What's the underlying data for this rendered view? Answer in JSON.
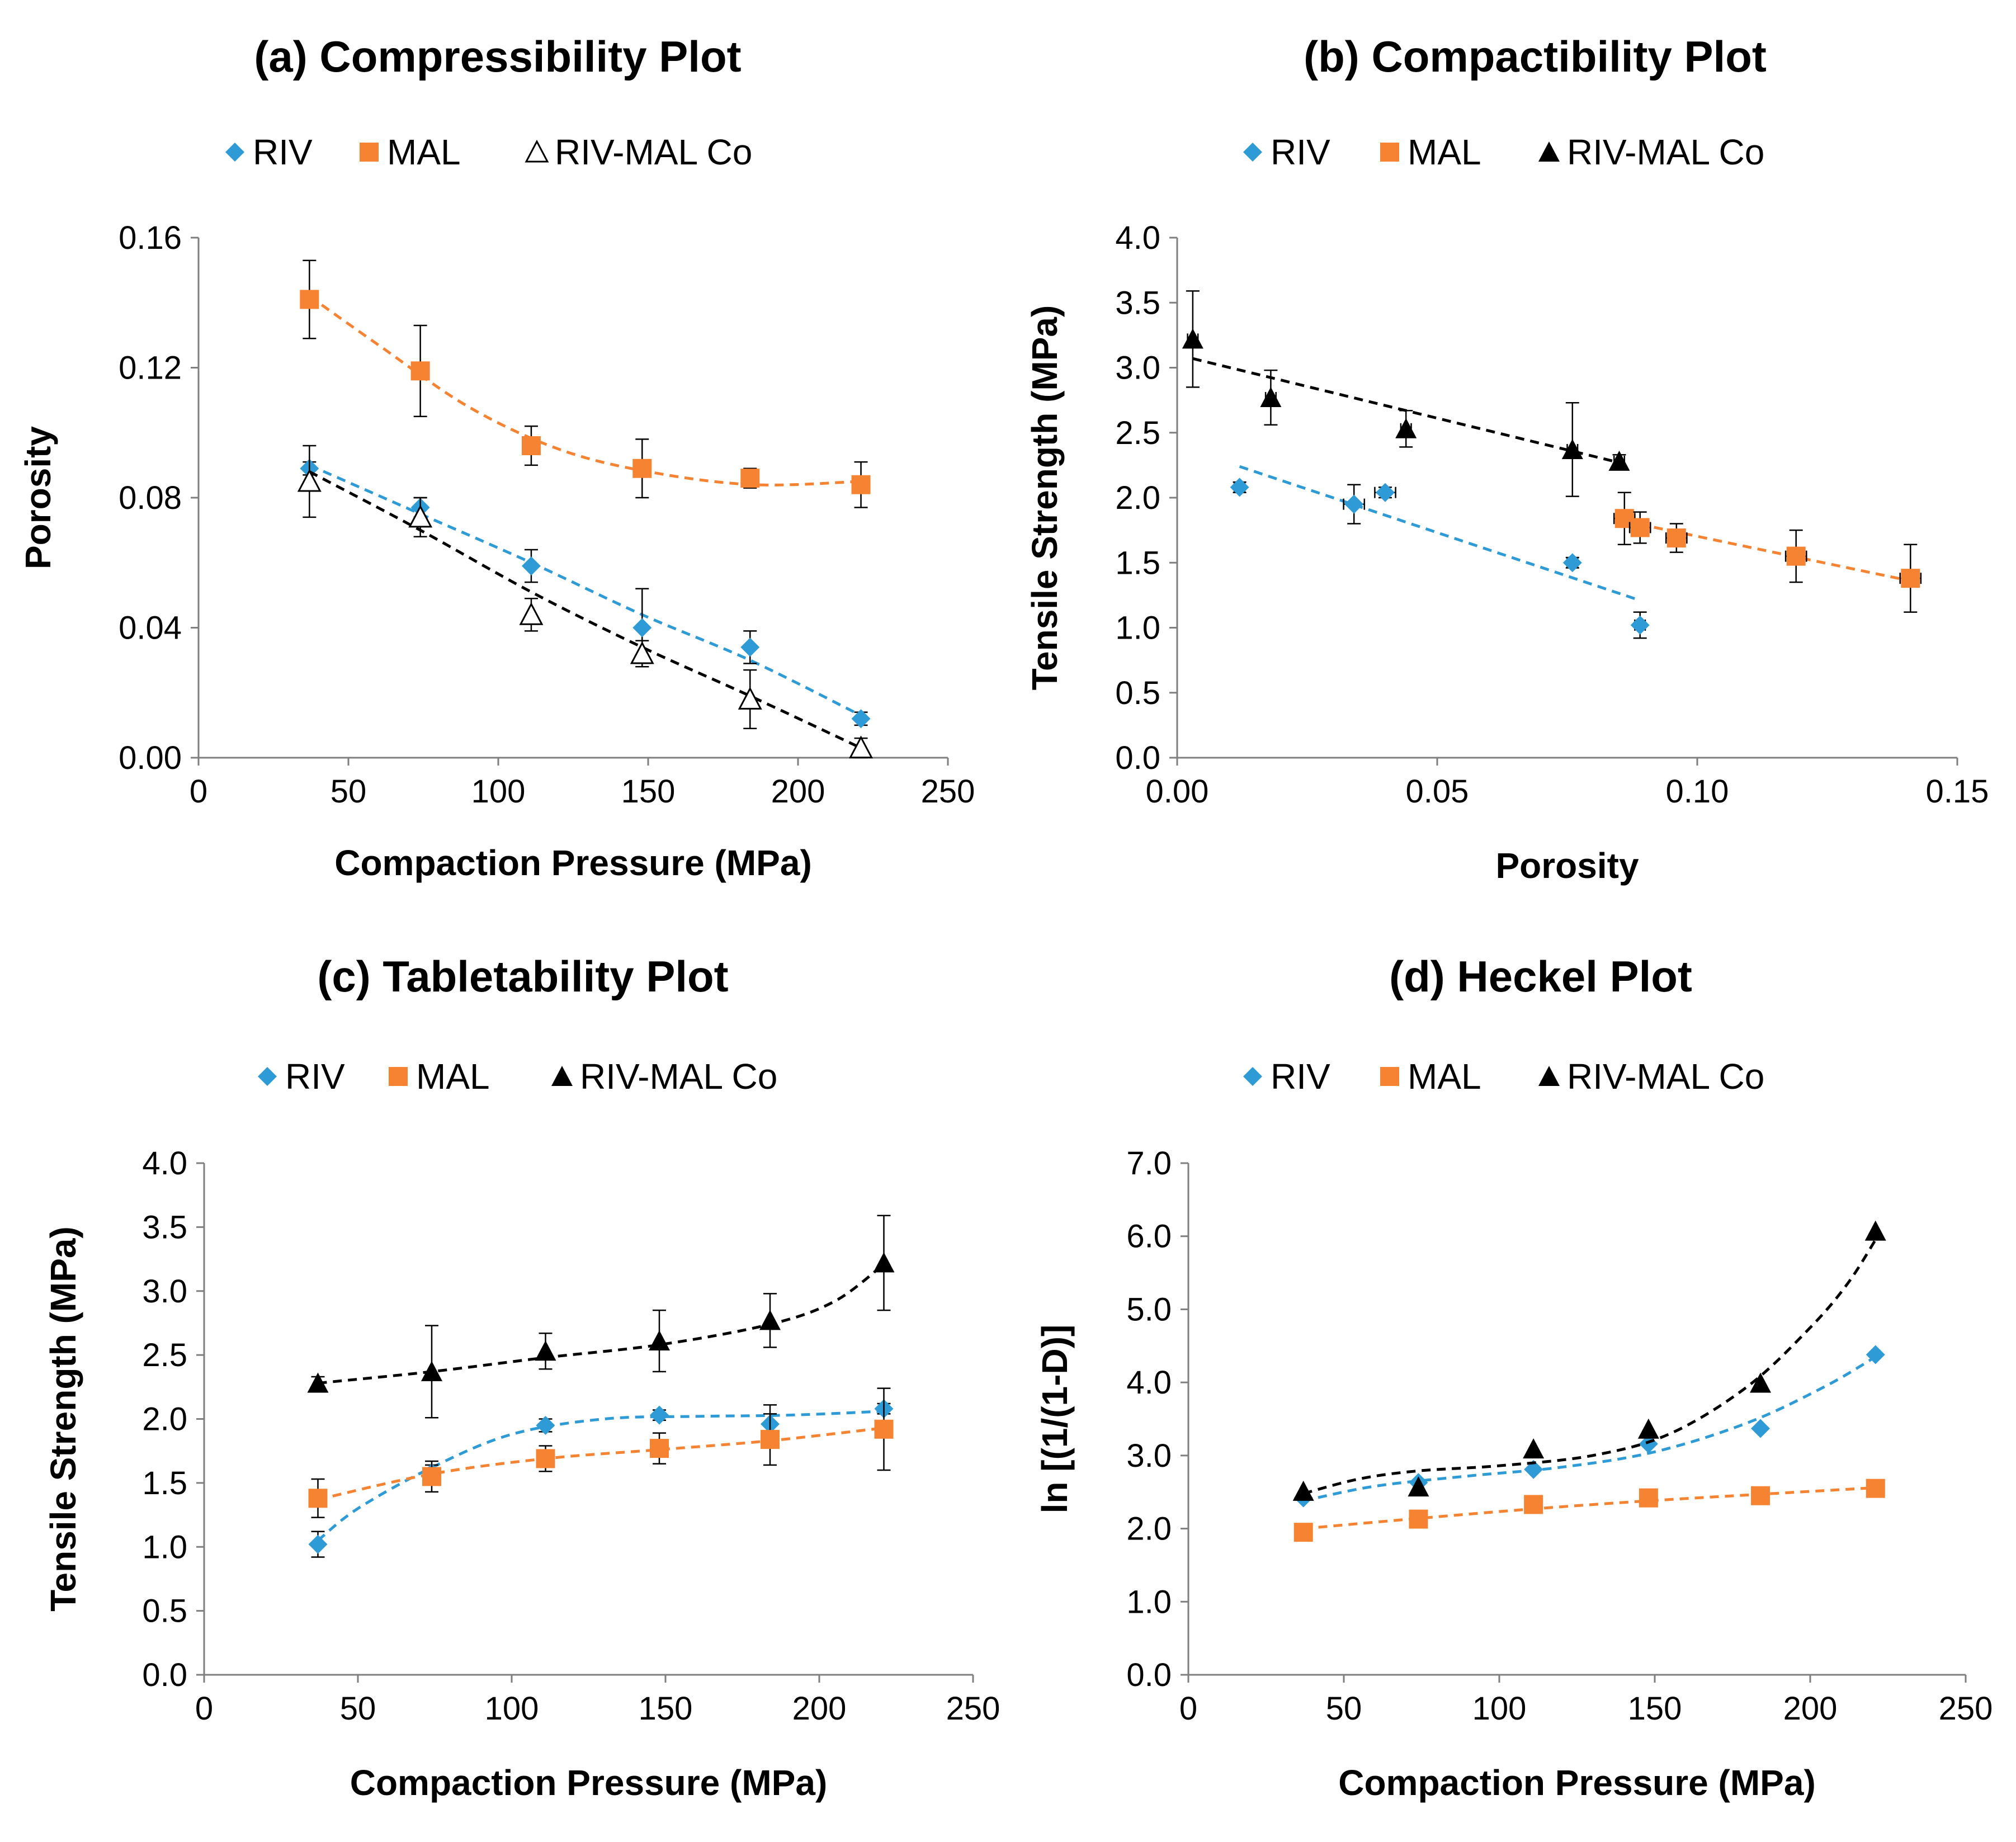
{
  "colors": {
    "riv": "#2e9bd6",
    "mal": "#f58332",
    "co": "#000000"
  },
  "chart_data": [
    {
      "panel": "a",
      "type": "scatter",
      "title": "(a) Compressibility Plot",
      "xlabel": "Compaction  Pressure (MPa)",
      "ylabel": "Porosity",
      "xlim": [
        0,
        250
      ],
      "ylim": [
        0,
        0.16
      ],
      "x_ticks": [
        0,
        50,
        100,
        150,
        200,
        250
      ],
      "x_tick_labels": [
        "0",
        "50",
        "100",
        "150",
        "200",
        "250"
      ],
      "y_ticks": [
        0,
        0.04,
        0.08,
        0.12,
        0.16
      ],
      "y_tick_labels": [
        "0.00",
        "0.04",
        "0.08",
        "0.12",
        "0.16"
      ],
      "legend": [
        "RIV",
        "MAL",
        "RIV-MAL Co"
      ],
      "series": [
        {
          "name": "RIV",
          "marker": "diamond",
          "color": "#2e9bd6",
          "x": [
            37,
            74,
            111,
            148,
            184,
            221
          ],
          "y": [
            0.089,
            0.077,
            0.059,
            0.04,
            0.034,
            0.012
          ],
          "err": [
            0.002,
            0.003,
            0.005,
            0.012,
            0.005,
            0.002
          ],
          "trend": [
            [
              37,
              0.09
            ],
            [
              74,
              0.075
            ],
            [
              111,
              0.06
            ],
            [
              148,
              0.044
            ],
            [
              184,
              0.03
            ],
            [
              221,
              0.013
            ]
          ]
        },
        {
          "name": "MAL",
          "marker": "square",
          "color": "#f58332",
          "x": [
            37,
            74,
            111,
            148,
            184,
            221
          ],
          "y": [
            0.141,
            0.119,
            0.096,
            0.089,
            0.086,
            0.084
          ],
          "err": [
            0.012,
            0.014,
            0.006,
            0.009,
            0.003,
            0.007
          ],
          "trend": [
            [
              37,
              0.142
            ],
            [
              60,
              0.127
            ],
            [
              90,
              0.108
            ],
            [
              120,
              0.095
            ],
            [
              150,
              0.088
            ],
            [
              185,
              0.084
            ],
            [
              221,
              0.085
            ]
          ]
        },
        {
          "name": "RIV-MAL Co",
          "marker": "triangle-open",
          "color": "#000000",
          "x": [
            37,
            74,
            111,
            148,
            184,
            221
          ],
          "y": [
            0.085,
            0.074,
            0.044,
            0.032,
            0.018,
            0.003
          ],
          "err": [
            0.011,
            0.006,
            0.005,
            0.004,
            0.009,
            0.003
          ],
          "trend": [
            [
              37,
              0.088
            ],
            [
              74,
              0.07
            ],
            [
              111,
              0.051
            ],
            [
              148,
              0.034
            ],
            [
              184,
              0.019
            ],
            [
              221,
              0.003
            ]
          ]
        }
      ]
    },
    {
      "panel": "b",
      "type": "scatter",
      "title": "(b) Compactibility Plot",
      "xlabel": "Porosity",
      "ylabel": "Tensile Strength (MPa)",
      "xlim": [
        0,
        0.15
      ],
      "ylim": [
        0,
        4.0
      ],
      "x_ticks": [
        0,
        0.05,
        0.1,
        0.15
      ],
      "x_tick_labels": [
        "0.00",
        "0.05",
        "0.10",
        "0.15"
      ],
      "y_ticks": [
        0,
        0.5,
        1.0,
        1.5,
        2.0,
        2.5,
        3.0,
        3.5,
        4.0
      ],
      "y_tick_labels": [
        "0.0",
        "0.5",
        "1.0",
        "1.5",
        "2.0",
        "2.5",
        "3.0",
        "3.5",
        "4.0"
      ],
      "legend": [
        "RIV",
        "MAL",
        "RIV-MAL Co"
      ],
      "series": [
        {
          "name": "RIV",
          "marker": "diamond",
          "color": "#2e9bd6",
          "x": [
            0.012,
            0.034,
            0.04,
            0.076,
            0.089
          ],
          "y": [
            2.08,
            1.95,
            2.04,
            1.5,
            1.02
          ],
          "err": [
            0.04,
            0.15,
            0.04,
            0.04,
            0.1
          ],
          "xerr": [
            0.001,
            0.002,
            0.002,
            0.001,
            0.001
          ],
          "trend": [
            [
              0.012,
              2.24
            ],
            [
              0.089,
              1.21
            ]
          ]
        },
        {
          "name": "MAL",
          "marker": "square",
          "color": "#f58332",
          "x": [
            0.086,
            0.089,
            0.096,
            0.119,
            0.141
          ],
          "y": [
            1.84,
            1.77,
            1.69,
            1.55,
            1.38
          ],
          "err": [
            0.2,
            0.12,
            0.11,
            0.2,
            0.26
          ],
          "xerr": [
            0.002,
            0.002,
            0.002,
            0.002,
            0.002
          ],
          "trend": [
            [
              0.086,
              1.82
            ],
            [
              0.141,
              1.36
            ]
          ]
        },
        {
          "name": "RIV-MAL Co",
          "marker": "triangle",
          "color": "#000000",
          "x": [
            0.003,
            0.018,
            0.044,
            0.076,
            0.085
          ],
          "y": [
            3.22,
            2.77,
            2.53,
            2.37,
            2.28
          ],
          "err": [
            0.37,
            0.21,
            0.14,
            0.36,
            0.05
          ],
          "xerr": [
            0.001,
            0.001,
            0.001,
            0.001,
            0.001
          ],
          "trend": [
            [
              0.003,
              3.07
            ],
            [
              0.085,
              2.27
            ]
          ]
        }
      ]
    },
    {
      "panel": "c",
      "type": "scatter",
      "title": "(c) Tabletability Plot",
      "xlabel": "Compaction  Pressure (MPa)",
      "ylabel": "Tensile Strength (MPa)",
      "xlim": [
        0,
        250
      ],
      "ylim": [
        0,
        4.0
      ],
      "x_ticks": [
        0,
        50,
        100,
        150,
        200,
        250
      ],
      "x_tick_labels": [
        "0",
        "50",
        "100",
        "150",
        "200",
        "250"
      ],
      "y_ticks": [
        0,
        0.5,
        1.0,
        1.5,
        2.0,
        2.5,
        3.0,
        3.5,
        4.0
      ],
      "y_tick_labels": [
        "0.0",
        "0.5",
        "1.0",
        "1.5",
        "2.0",
        "2.5",
        "3.0",
        "3.5",
        "4.0"
      ],
      "legend": [
        "RIV",
        "MAL",
        "RIV-MAL Co"
      ],
      "series": [
        {
          "name": "RIV",
          "marker": "diamond",
          "color": "#2e9bd6",
          "x": [
            37,
            74,
            111,
            148,
            184,
            221
          ],
          "y": [
            1.02,
            1.58,
            1.95,
            2.03,
            1.96,
            2.08
          ],
          "err": [
            0.1,
            0.06,
            0.05,
            0.04,
            0.15,
            0.04
          ],
          "trend": [
            [
              37,
              1.05
            ],
            [
              50,
              1.3
            ],
            [
              74,
              1.62
            ],
            [
              100,
              1.88
            ],
            [
              130,
              2.0
            ],
            [
              160,
              2.02
            ],
            [
              190,
              2.03
            ],
            [
              221,
              2.06
            ]
          ]
        },
        {
          "name": "MAL",
          "marker": "square",
          "color": "#f58332",
          "x": [
            37,
            74,
            111,
            148,
            184,
            221
          ],
          "y": [
            1.38,
            1.55,
            1.69,
            1.77,
            1.84,
            1.92
          ],
          "err": [
            0.15,
            0.12,
            0.1,
            0.12,
            0.2,
            0.32
          ],
          "trend": [
            [
              37,
              1.37
            ],
            [
              74,
              1.57
            ],
            [
              111,
              1.69
            ],
            [
              148,
              1.76
            ],
            [
              184,
              1.83
            ],
            [
              221,
              1.93
            ]
          ]
        },
        {
          "name": "RIV-MAL Co",
          "marker": "triangle",
          "color": "#000000",
          "x": [
            37,
            74,
            111,
            148,
            184,
            221
          ],
          "y": [
            2.28,
            2.37,
            2.53,
            2.61,
            2.77,
            3.22
          ],
          "err": [
            0.05,
            0.36,
            0.14,
            0.24,
            0.21,
            0.37
          ],
          "trend": [
            [
              37,
              2.28
            ],
            [
              74,
              2.37
            ],
            [
              111,
              2.48
            ],
            [
              148,
              2.58
            ],
            [
              184,
              2.74
            ],
            [
              205,
              2.92
            ],
            [
              221,
              3.21
            ]
          ]
        }
      ]
    },
    {
      "panel": "d",
      "type": "scatter",
      "title": "(d) Heckel Plot",
      "xlabel": "Compaction  Pressure (MPa)",
      "ylabel": "ln [(1/(1-D)]",
      "xlim": [
        0,
        250
      ],
      "ylim": [
        0,
        7.0
      ],
      "x_ticks": [
        0,
        50,
        100,
        150,
        200,
        250
      ],
      "x_tick_labels": [
        "0",
        "50",
        "100",
        "150",
        "200",
        "250"
      ],
      "y_ticks": [
        0,
        1,
        2,
        3,
        4,
        5,
        6,
        7
      ],
      "y_tick_labels": [
        "0.0",
        "1.0",
        "2.0",
        "3.0",
        "4.0",
        "5.0",
        "6.0",
        "7.0"
      ],
      "legend": [
        "RIV",
        "MAL",
        "RIV-MAL Co"
      ],
      "series": [
        {
          "name": "RIV",
          "marker": "diamond",
          "color": "#2e9bd6",
          "x": [
            37,
            74,
            111,
            148,
            184,
            221
          ],
          "y": [
            2.42,
            2.63,
            2.81,
            3.16,
            3.37,
            4.38
          ],
          "trend": [
            [
              37,
              2.38
            ],
            [
              60,
              2.58
            ],
            [
              90,
              2.72
            ],
            [
              120,
              2.84
            ],
            [
              150,
              3.05
            ],
            [
              180,
              3.45
            ],
            [
              205,
              3.95
            ],
            [
              221,
              4.35
            ]
          ]
        },
        {
          "name": "MAL",
          "marker": "square",
          "color": "#f58332",
          "x": [
            37,
            74,
            111,
            148,
            184,
            221
          ],
          "y": [
            1.95,
            2.13,
            2.33,
            2.42,
            2.45,
            2.55
          ],
          "trend": [
            [
              37,
              2.0
            ],
            [
              74,
              2.14
            ],
            [
              111,
              2.27
            ],
            [
              148,
              2.38
            ],
            [
              184,
              2.47
            ],
            [
              221,
              2.56
            ]
          ]
        },
        {
          "name": "RIV-MAL Co",
          "marker": "triangle",
          "color": "#000000",
          "x": [
            37,
            74,
            111,
            148,
            184,
            221
          ],
          "y": [
            2.51,
            2.57,
            3.09,
            3.36,
            3.99,
            6.07
          ],
          "trend": [
            [
              37,
              2.48
            ],
            [
              55,
              2.68
            ],
            [
              74,
              2.79
            ],
            [
              100,
              2.86
            ],
            [
              130,
              3.0
            ],
            [
              155,
              3.3
            ],
            [
              180,
              3.95
            ],
            [
              200,
              4.75
            ],
            [
              212,
              5.35
            ],
            [
              221,
              5.95
            ]
          ]
        }
      ]
    }
  ]
}
